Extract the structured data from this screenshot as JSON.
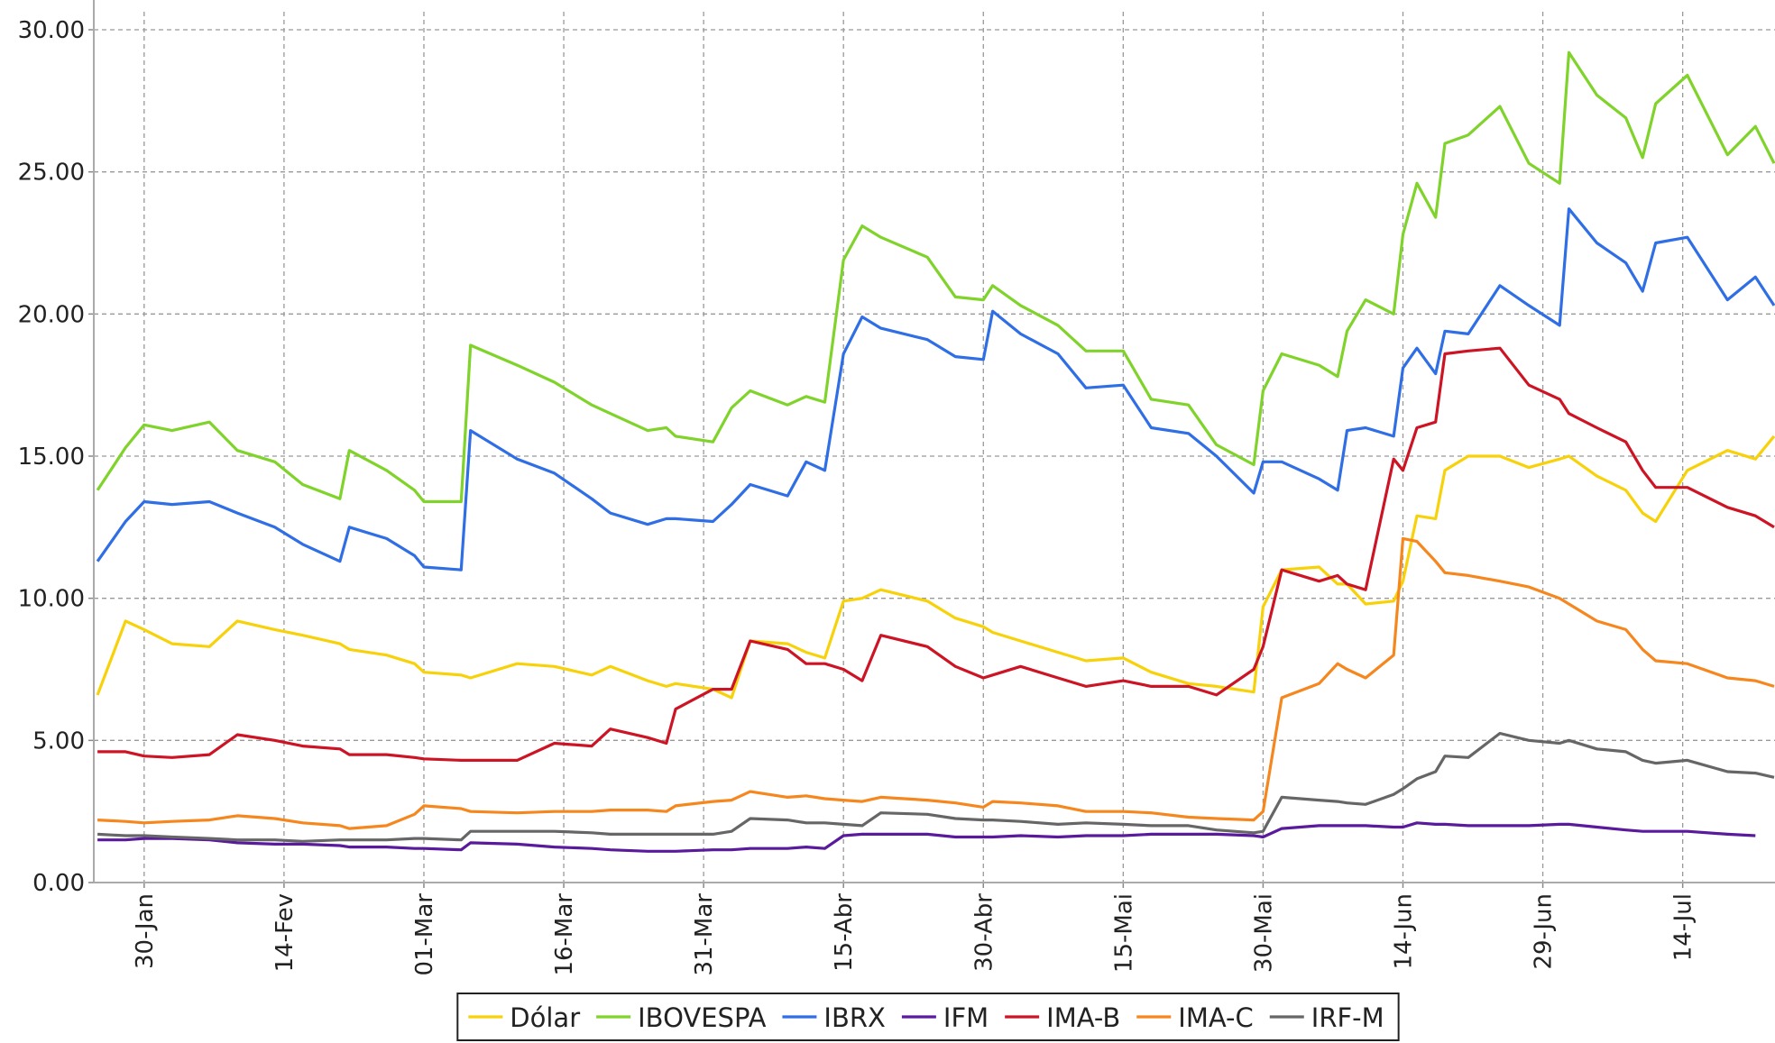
{
  "chart_data": {
    "type": "line",
    "x": [
      25,
      28,
      30,
      33,
      37,
      40,
      44,
      47,
      51,
      52,
      56,
      59,
      60,
      64,
      65,
      70,
      74,
      78,
      80,
      84,
      86,
      87,
      91,
      93,
      95,
      99,
      101,
      103,
      105,
      107,
      109,
      114,
      117,
      120,
      121,
      124,
      128,
      131,
      135,
      138,
      142,
      145,
      149,
      150,
      152,
      156,
      158,
      159,
      161,
      164,
      165,
      166.5,
      168.5,
      169.5,
      172,
      175.4,
      178.5,
      181.8,
      182.8,
      185.8,
      188.9,
      190.7,
      192.1,
      195.5,
      199.8,
      202.8,
      204.8
    ],
    "series": [
      {
        "name": "Dólar",
        "color": "#f7d20a",
        "values": [
          6.6,
          9.2,
          8.9,
          8.4,
          8.3,
          9.2,
          8.9,
          8.7,
          8.4,
          8.2,
          8.0,
          7.7,
          7.4,
          7.3,
          7.2,
          7.7,
          7.6,
          7.3,
          7.6,
          7.1,
          6.9,
          7.0,
          6.8,
          6.5,
          8.5,
          8.4,
          8.1,
          7.9,
          9.9,
          10.0,
          10.3,
          9.9,
          9.3,
          9.0,
          8.8,
          8.5,
          8.1,
          7.8,
          7.9,
          7.4,
          7.0,
          6.9,
          6.7,
          9.7,
          11.0,
          11.1,
          10.5,
          10.5,
          9.8,
          9.9,
          10.6,
          12.9,
          12.8,
          14.5,
          15.0,
          15.0,
          14.6,
          14.9,
          15.0,
          14.3,
          13.8,
          13.0,
          12.7,
          14.5,
          15.2,
          14.9,
          15.7
        ]
      },
      {
        "name": "IBOVESPA",
        "color": "#7fd32a",
        "values": [
          13.8,
          15.3,
          16.1,
          15.9,
          16.2,
          15.2,
          14.8,
          14.0,
          13.5,
          15.2,
          14.5,
          13.8,
          13.4,
          13.4,
          18.9,
          18.2,
          17.6,
          16.8,
          16.5,
          15.9,
          16.0,
          15.7,
          15.5,
          16.7,
          17.3,
          16.8,
          17.1,
          16.9,
          21.9,
          23.1,
          22.7,
          22.0,
          20.6,
          20.5,
          21.0,
          20.3,
          19.6,
          18.7,
          18.7,
          17.0,
          16.8,
          15.4,
          14.7,
          17.3,
          18.6,
          18.2,
          17.8,
          19.4,
          20.5,
          20.0,
          22.8,
          24.6,
          23.4,
          26.0,
          26.3,
          27.3,
          25.3,
          24.6,
          29.2,
          27.7,
          26.9,
          25.5,
          27.4,
          28.4,
          25.6,
          26.6,
          25.3
        ]
      },
      {
        "name": "IBRX",
        "color": "#2f6ee4",
        "values": [
          11.3,
          12.7,
          13.4,
          13.3,
          13.4,
          13.0,
          12.5,
          11.9,
          11.3,
          12.5,
          12.1,
          11.5,
          11.1,
          11.0,
          15.9,
          14.9,
          14.4,
          13.5,
          13.0,
          12.6,
          12.8,
          12.8,
          12.7,
          13.3,
          14.0,
          13.6,
          14.8,
          14.5,
          18.6,
          19.9,
          19.5,
          19.1,
          18.5,
          18.4,
          20.1,
          19.3,
          18.6,
          17.4,
          17.5,
          16.0,
          15.8,
          15.0,
          13.7,
          14.8,
          14.8,
          14.2,
          13.8,
          15.9,
          16.0,
          15.7,
          18.1,
          18.8,
          17.9,
          19.4,
          19.3,
          21.0,
          20.3,
          19.6,
          23.7,
          22.5,
          21.8,
          20.8,
          22.5,
          22.7,
          20.5,
          21.3,
          20.3
        ]
      },
      {
        "name": "IFM",
        "color": "#5a1a9c",
        "values": [
          1.5,
          1.5,
          1.55,
          1.55,
          1.5,
          1.4,
          1.35,
          1.35,
          1.3,
          1.25,
          1.25,
          1.2,
          1.2,
          1.15,
          1.4,
          1.35,
          1.25,
          1.2,
          1.15,
          1.1,
          1.1,
          1.1,
          1.15,
          1.15,
          1.2,
          1.2,
          1.25,
          1.2,
          1.65,
          1.7,
          1.7,
          1.7,
          1.6,
          1.6,
          1.6,
          1.65,
          1.6,
          1.65,
          1.65,
          1.7,
          1.7,
          1.7,
          1.65,
          1.6,
          1.9,
          2.0,
          2.0,
          2.0,
          2.0,
          1.95,
          1.95,
          2.1,
          2.05,
          2.05,
          2.0,
          2.0,
          2.0,
          2.05,
          2.05,
          1.95,
          1.85,
          1.8,
          1.8,
          1.8,
          1.7,
          1.65,
          null
        ]
      },
      {
        "name": "IMA-B",
        "color": "#cc1424",
        "values": [
          4.6,
          4.6,
          4.45,
          4.4,
          4.5,
          5.2,
          5.0,
          4.8,
          4.7,
          4.5,
          4.5,
          4.4,
          4.35,
          4.3,
          4.3,
          4.3,
          4.9,
          4.8,
          5.4,
          5.1,
          4.9,
          6.1,
          6.8,
          6.8,
          8.5,
          8.2,
          7.7,
          7.7,
          7.5,
          7.1,
          8.7,
          8.3,
          7.6,
          7.2,
          7.3,
          7.6,
          7.2,
          6.9,
          7.1,
          6.9,
          6.9,
          6.6,
          7.5,
          8.3,
          11.0,
          10.6,
          10.8,
          10.5,
          10.3,
          14.9,
          14.5,
          16.0,
          16.2,
          18.6,
          18.7,
          18.8,
          17.5,
          17.0,
          16.5,
          16.0,
          15.5,
          14.5,
          13.9,
          13.9,
          13.2,
          12.9,
          12.5
        ]
      },
      {
        "name": "IMA-C",
        "color": "#f5871e",
        "values": [
          2.2,
          2.15,
          2.1,
          2.15,
          2.2,
          2.35,
          2.25,
          2.1,
          2.0,
          1.9,
          2.0,
          2.4,
          2.7,
          2.6,
          2.5,
          2.45,
          2.5,
          2.5,
          2.55,
          2.55,
          2.5,
          2.7,
          2.85,
          2.9,
          3.2,
          3.0,
          3.05,
          2.95,
          2.9,
          2.85,
          3.0,
          2.9,
          2.8,
          2.65,
          2.85,
          2.8,
          2.7,
          2.5,
          2.5,
          2.45,
          2.3,
          2.25,
          2.2,
          2.5,
          6.5,
          7.0,
          7.7,
          7.5,
          7.2,
          8.0,
          12.1,
          12.0,
          11.3,
          10.9,
          10.8,
          10.6,
          10.4,
          10.0,
          9.8,
          9.2,
          8.9,
          8.2,
          7.8,
          7.7,
          7.2,
          7.1,
          6.9
        ]
      },
      {
        "name": "IRF-M",
        "color": "#666666",
        "values": [
          1.7,
          1.65,
          1.65,
          1.6,
          1.55,
          1.5,
          1.5,
          1.45,
          1.5,
          1.5,
          1.5,
          1.55,
          1.55,
          1.5,
          1.8,
          1.8,
          1.8,
          1.75,
          1.7,
          1.7,
          1.7,
          1.7,
          1.7,
          1.8,
          2.25,
          2.2,
          2.1,
          2.1,
          2.05,
          2.0,
          2.45,
          2.4,
          2.25,
          2.2,
          2.2,
          2.15,
          2.05,
          2.1,
          2.05,
          2.0,
          2.0,
          1.85,
          1.75,
          1.8,
          3.0,
          2.9,
          2.85,
          2.8,
          2.75,
          3.1,
          3.3,
          3.65,
          3.9,
          4.45,
          4.4,
          5.25,
          5.0,
          4.9,
          5.0,
          4.7,
          4.6,
          4.3,
          4.2,
          4.3,
          3.9,
          3.85,
          3.7
        ]
      }
    ],
    "xlim": [
      24.6,
      204.9
    ],
    "xticks": [
      {
        "value": 30,
        "label": "30-Jan"
      },
      {
        "value": 45,
        "label": "14-Fev"
      },
      {
        "value": 60,
        "label": "01-Mar"
      },
      {
        "value": 75,
        "label": "16-Mar"
      },
      {
        "value": 90,
        "label": "31-Mar"
      },
      {
        "value": 105,
        "label": "15-Abr"
      },
      {
        "value": 120,
        "label": "30-Abr"
      },
      {
        "value": 135,
        "label": "15-Mai"
      },
      {
        "value": 150,
        "label": "30-Mai"
      },
      {
        "value": 165,
        "label": "14-Jun"
      },
      {
        "value": 180,
        "label": "29-Jun"
      },
      {
        "value": 195,
        "label": "14-Jul"
      }
    ],
    "ylim": [
      0,
      30
    ],
    "yticks": [
      {
        "value": 0,
        "label": "0.00"
      },
      {
        "value": 5,
        "label": "5.00"
      },
      {
        "value": 10,
        "label": "10.00"
      },
      {
        "value": 15,
        "label": "15.00"
      },
      {
        "value": 20,
        "label": "20.00"
      },
      {
        "value": 25,
        "label": "25.00"
      },
      {
        "value": 30,
        "label": "30.00"
      }
    ],
    "grid": true,
    "legend": "bottom"
  }
}
